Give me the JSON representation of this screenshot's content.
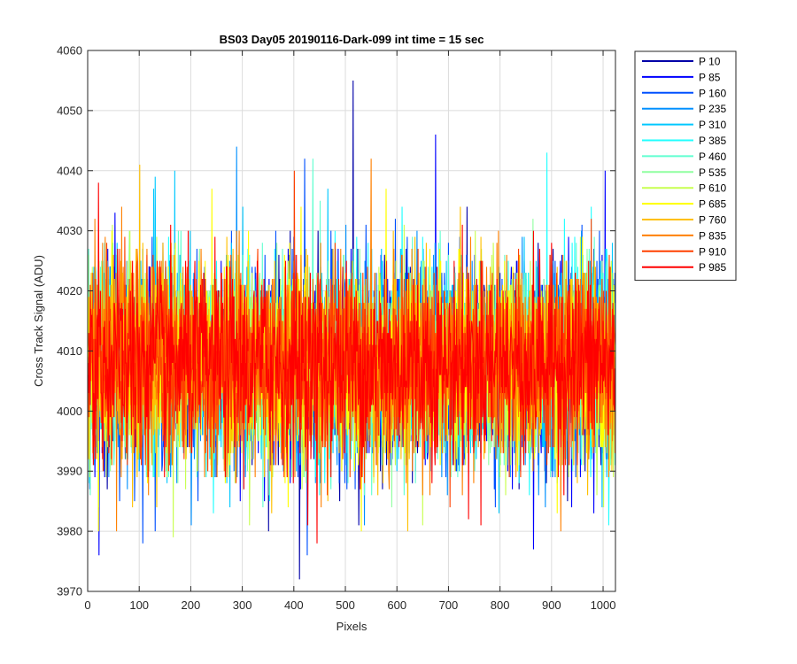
{
  "chart_data": {
    "type": "line",
    "title": "BS03 Day05 20190116-Dark-099 int time = 15 sec",
    "xlabel": "Pixels",
    "ylabel": "Cross Track Signal (ADU)",
    "xlim": [
      0,
      1024
    ],
    "ylim": [
      3970,
      4060
    ],
    "xticks": [
      0,
      100,
      200,
      300,
      400,
      500,
      600,
      700,
      800,
      900,
      1000
    ],
    "yticks": [
      3970,
      3980,
      3990,
      4000,
      4010,
      4020,
      4030,
      4040,
      4050,
      4060
    ],
    "grid": true,
    "legend_position": "outside-top-right",
    "mean_signal": 4008,
    "series": [
      {
        "name": "P 10",
        "color": "#0000a8",
        "peaks": [
          [
            514,
            4055
          ],
          [
            410,
            3972
          ]
        ]
      },
      {
        "name": "P 85",
        "color": "#0000ff",
        "peaks": [
          [
            674,
            4046
          ],
          [
            864,
            3977
          ],
          [
            1003,
            4040
          ]
        ]
      },
      {
        "name": "P 160",
        "color": "#0050ff",
        "peaks": [
          [
            420,
            4042
          ],
          [
            425,
            3976
          ],
          [
            130,
            3980
          ]
        ]
      },
      {
        "name": "P 235",
        "color": "#0090ff",
        "peaks": [
          [
            288,
            4044
          ]
        ]
      },
      {
        "name": "P 310",
        "color": "#00c8ff",
        "peaks": [
          [
            168,
            4040
          ],
          [
            130,
            4039
          ]
        ]
      },
      {
        "name": "P 385",
        "color": "#20ffff",
        "peaks": [
          [
            890,
            4043
          ],
          [
            1010,
            3981
          ]
        ]
      },
      {
        "name": "P 460",
        "color": "#60ffd0",
        "peaks": [
          [
            450,
            4035
          ]
        ]
      },
      {
        "name": "P 535",
        "color": "#90ffa0",
        "peaks": [
          [
            80,
            4030
          ]
        ]
      },
      {
        "name": "P 610",
        "color": "#c8ff50",
        "peaks": [
          [
            165,
            3979
          ]
        ]
      },
      {
        "name": "P 685",
        "color": "#ffff00",
        "peaks": [
          [
            530,
            3980
          ],
          [
            20,
            3980
          ]
        ]
      },
      {
        "name": "P 760",
        "color": "#ffc000",
        "peaks": [
          [
            100,
            4041
          ],
          [
            620,
            3980
          ]
        ]
      },
      {
        "name": "P 835",
        "color": "#ff8000",
        "peaks": [
          [
            55,
            3980
          ],
          [
            917,
            3980
          ]
        ]
      },
      {
        "name": "P 910",
        "color": "#ff4000",
        "peaks": [
          [
            400,
            4040
          ]
        ]
      },
      {
        "name": "P 985",
        "color": "#ff0000",
        "peaks": [
          [
            20,
            4038
          ],
          [
            444,
            3978
          ],
          [
            738,
            3982
          ]
        ]
      }
    ]
  }
}
